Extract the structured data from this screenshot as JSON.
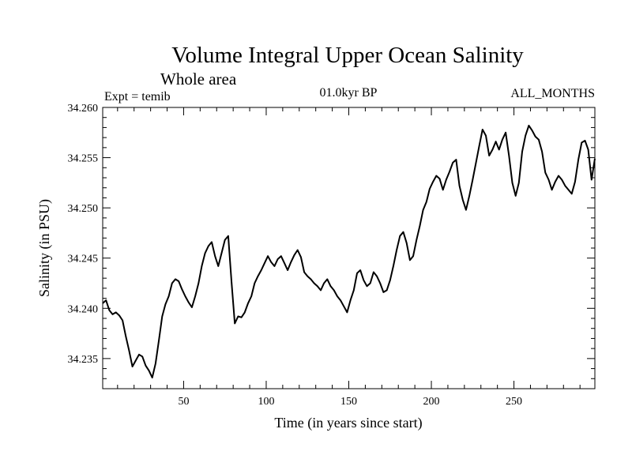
{
  "chart_data": {
    "type": "line",
    "title": "Volume Integral Upper Ocean Salinity",
    "subtitle": "Whole area",
    "experiment": "Expt = temib",
    "period": "01.0kyr BP",
    "season": "ALL_MONTHS",
    "xlabel": "Time (in years since start)",
    "ylabel": "Salinity (in PSU)",
    "xlim": [
      1,
      299
    ],
    "ylim": [
      34.232,
      34.26
    ],
    "xticks": [
      50,
      100,
      150,
      200,
      250
    ],
    "xtick_labels": [
      "50",
      "100",
      "150",
      "200",
      "250"
    ],
    "yticks": [
      34.235,
      34.24,
      34.245,
      34.25,
      34.255,
      34.26
    ],
    "ytick_labels": [
      "34.235",
      "34.240",
      "34.245",
      "34.250",
      "34.255",
      "34.260"
    ],
    "series": [
      {
        "name": "Salinity",
        "x": [
          1,
          3,
          5,
          7,
          9,
          11,
          13,
          15,
          17,
          19,
          21,
          23,
          25,
          27,
          29,
          31,
          33,
          35,
          37,
          39,
          41,
          43,
          45,
          47,
          49,
          51,
          53,
          55,
          57,
          59,
          61,
          63,
          65,
          67,
          69,
          71,
          73,
          75,
          77,
          79,
          81,
          83,
          85,
          87,
          89,
          91,
          93,
          95,
          97,
          99,
          101,
          103,
          105,
          107,
          109,
          111,
          113,
          115,
          117,
          119,
          121,
          123,
          125,
          127,
          129,
          131,
          133,
          135,
          137,
          139,
          141,
          143,
          145,
          147,
          149,
          151,
          153,
          155,
          157,
          159,
          161,
          163,
          165,
          167,
          169,
          171,
          173,
          175,
          177,
          179,
          181,
          183,
          185,
          187,
          189,
          191,
          193,
          195,
          197,
          199,
          201,
          203,
          205,
          207,
          209,
          211,
          213,
          215,
          217,
          219,
          221,
          223,
          225,
          227,
          229,
          231,
          233,
          235,
          237,
          239,
          241,
          243,
          245,
          247,
          249,
          251,
          253,
          255,
          257,
          259,
          261,
          263,
          265,
          267,
          269,
          271,
          273,
          275,
          277,
          279,
          281,
          283,
          285,
          287,
          289,
          291,
          293,
          295,
          297,
          299
        ],
        "values": [
          34.2405,
          34.2408,
          34.2398,
          34.2394,
          34.2396,
          34.2393,
          34.2388,
          34.2372,
          34.2358,
          34.2342,
          34.2348,
          34.2354,
          34.2352,
          34.2343,
          34.2338,
          34.2331,
          34.2345,
          34.2368,
          34.2392,
          34.2404,
          34.2412,
          34.2425,
          34.2429,
          34.2427,
          34.2419,
          34.2412,
          34.2406,
          34.2401,
          34.2412,
          34.2425,
          34.2442,
          34.2455,
          34.2462,
          34.2466,
          34.2452,
          34.2442,
          34.2455,
          34.2468,
          34.2472,
          34.2426,
          34.2385,
          34.2392,
          34.2391,
          34.2396,
          34.2405,
          34.2412,
          34.2425,
          34.2432,
          34.2438,
          34.2445,
          34.2452,
          34.2446,
          34.2442,
          34.2449,
          34.2452,
          34.2445,
          34.2438,
          34.2446,
          34.2453,
          34.2458,
          34.2451,
          34.2436,
          34.2432,
          34.2429,
          34.2425,
          34.2422,
          34.2418,
          34.2425,
          34.2429,
          34.2422,
          34.2418,
          34.2412,
          34.2408,
          34.2402,
          34.2396,
          34.2408,
          34.2418,
          34.2435,
          34.2438,
          34.2428,
          34.2422,
          34.2425,
          34.2436,
          34.2432,
          34.2425,
          34.2416,
          34.2418,
          34.2428,
          34.2442,
          34.2458,
          34.2472,
          34.2476,
          34.2465,
          34.2448,
          34.2452,
          34.2468,
          34.2482,
          34.2498,
          34.2506,
          34.2519,
          34.2526,
          34.2532,
          34.2529,
          34.2518,
          34.2528,
          34.2536,
          34.2545,
          34.2548,
          34.2522,
          34.2508,
          34.2498,
          34.2512,
          34.2528,
          34.2545,
          34.2562,
          34.2578,
          34.2572,
          34.2552,
          34.2558,
          34.2566,
          34.2558,
          34.2568,
          34.2575,
          34.2552,
          34.2525,
          34.2512,
          34.2525,
          34.2556,
          34.2572,
          34.2582,
          34.2577,
          34.2571,
          34.2568,
          34.2556,
          34.2535,
          34.2528,
          34.2518,
          34.2526,
          34.2532,
          34.2528,
          34.2522,
          34.2518,
          34.2514,
          34.2526,
          34.2548,
          34.2565,
          34.2567,
          34.2558,
          34.2528,
          34.2549
        ]
      }
    ]
  }
}
